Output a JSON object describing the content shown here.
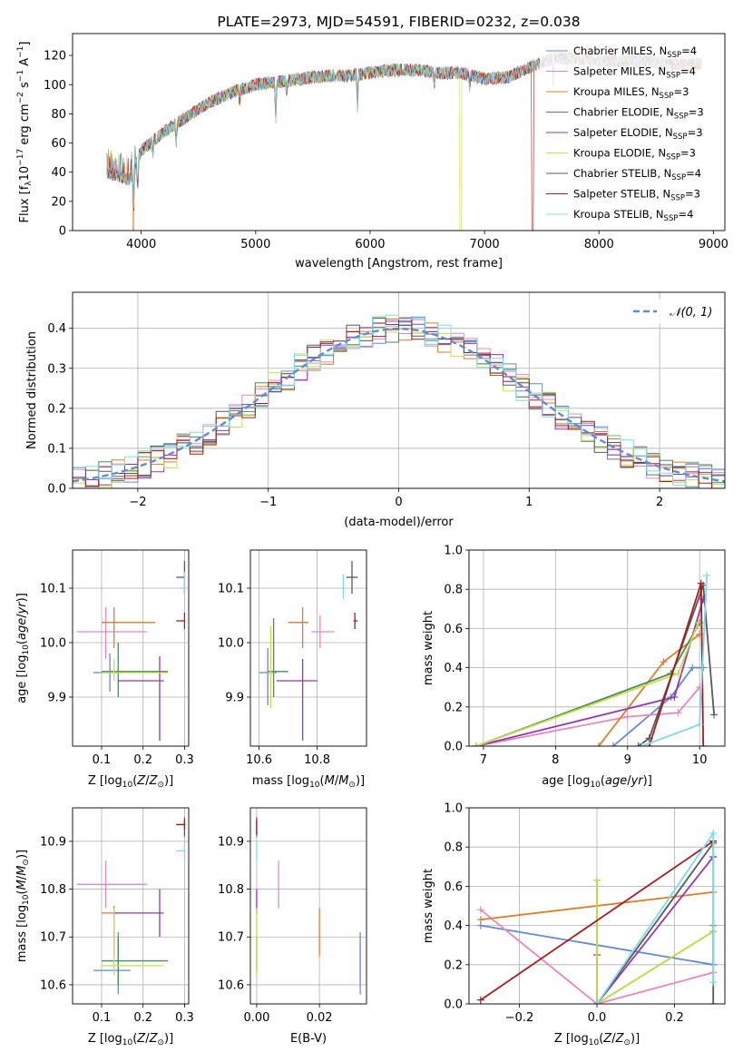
{
  "colors": {
    "chabrier_miles": "#5f8ad8",
    "salpeter_miles": "#e688c0",
    "kroupa_miles": "#e07b28",
    "chabrier_elodie": "#4a8a5c",
    "salpeter_elodie": "#9436b3",
    "kroupa_elodie": "#c5e04a",
    "chabrier_stelib": "#595959",
    "salpeter_stelib": "#a61c1c",
    "kroupa_stelib": "#7fdce8",
    "normal_dashed": "#5f8ad8",
    "grid": "#b0b0b0"
  },
  "chart_data": [
    {
      "id": "spectrum",
      "type": "line",
      "title": "PLATE=2973, MJD=54591, FIBERID=0232, z=0.038",
      "xlabel": "wavelength [Angstrom, rest frame]",
      "ylabel": "Flux [f_λ10^-17 erg cm^-2 s^-1 A^-1]",
      "xlim": [
        3400,
        9100
      ],
      "ylim": [
        0,
        135
      ],
      "xticks": [
        "4000",
        "5000",
        "6000",
        "7000",
        "8000",
        "9000"
      ],
      "yticks": [
        "0",
        "20",
        "40",
        "60",
        "80",
        "100",
        "120"
      ],
      "grid": false,
      "legend_position": "right",
      "legend": [
        {
          "label": "Chabrier MILES, N",
          "sub": "SSP",
          "tail": "=4"
        },
        {
          "label": "Salpeter MILES, N",
          "sub": "SSP",
          "tail": "=4"
        },
        {
          "label": "Kroupa MILES, N",
          "sub": "SSP",
          "tail": "=3"
        },
        {
          "label": "Chabrier ELODIE, N",
          "sub": "SSP",
          "tail": "=3"
        },
        {
          "label": "Salpeter ELODIE, N",
          "sub": "SSP",
          "tail": "=3"
        },
        {
          "label": "Kroupa ELODIE, N",
          "sub": "SSP",
          "tail": "=3"
        },
        {
          "label": "Chabrier STELIB, N",
          "sub": "SSP",
          "tail": "=4"
        },
        {
          "label": "Salpeter STELIB, N",
          "sub": "SSP",
          "tail": "=3"
        },
        {
          "label": "Kroupa STELIB, N",
          "sub": "SSP",
          "tail": "=4"
        }
      ],
      "continuum": {
        "x": [
          3700,
          3900,
          4000,
          4200,
          4400,
          4600,
          4800,
          5000,
          5200,
          5400,
          5600,
          5800,
          6000,
          6200,
          6400,
          6600,
          6800,
          7000,
          7200,
          7400,
          7600,
          7800,
          8000,
          8200,
          8400,
          8600,
          8800,
          8900
        ],
        "y": [
          40,
          35,
          55,
          68,
          78,
          88,
          95,
          100,
          102,
          104,
          106,
          106,
          108,
          110,
          110,
          108,
          108,
          104,
          105,
          112,
          118,
          118,
          116,
          116,
          116,
          114,
          114,
          114
        ]
      },
      "cutoffs": [
        {
          "series": "kroupa_miles",
          "x": 3930
        },
        {
          "series": "kroupa_elodie",
          "x": 6790
        },
        {
          "series": "salpeter_stelib",
          "x": 7420
        }
      ]
    },
    {
      "id": "residuals",
      "type": "histogram",
      "xlabel": "(data-model)/error",
      "ylabel": "Normed distribution",
      "xlim": [
        -2.5,
        2.5
      ],
      "ylim": [
        0,
        0.49
      ],
      "xticks": [
        "−2",
        "−1",
        "0",
        "1",
        "2"
      ],
      "yticks": [
        "0.0",
        "0.1",
        "0.2",
        "0.3",
        "0.4"
      ],
      "grid": true,
      "legend": "𝒩(0, 1)",
      "legend_position": "top-right",
      "bin_width": 0.1,
      "normal_curve": {
        "mean": 0,
        "sigma": 1
      }
    },
    {
      "id": "age_vs_Z",
      "type": "scatter",
      "xlabel": "Z [log10(Z/Z⊙)]",
      "ylabel": "age [log10(age/yr)]",
      "xlim": [
        0.03,
        0.31
      ],
      "ylim": [
        9.81,
        10.17
      ],
      "xticks": [
        "0.1",
        "0.2",
        "0.3"
      ],
      "yticks": [
        "9.9",
        "10.0",
        "10.1"
      ],
      "grid": true,
      "points": [
        {
          "series": "chabrier_miles",
          "x": 0.12,
          "y": 9.945,
          "xerr": [
            0.08,
            0.15
          ],
          "yerr": [
            9.91,
            9.98
          ]
        },
        {
          "series": "salpeter_miles",
          "x": 0.11,
          "y": 10.02,
          "xerr": [
            0.04,
            0.21
          ],
          "yerr": [
            9.97,
            10.065
          ]
        },
        {
          "series": "kroupa_miles",
          "x": 0.13,
          "y": 10.037,
          "xerr": [
            0.1,
            0.23
          ],
          "yerr": [
            9.99,
            10.065
          ]
        },
        {
          "series": "chabrier_elodie",
          "x": 0.14,
          "y": 9.947,
          "xerr": [
            0.1,
            0.26
          ],
          "yerr": [
            9.9,
            10.0
          ]
        },
        {
          "series": "salpeter_elodie",
          "x": 0.24,
          "y": 9.93,
          "xerr": [
            0.14,
            0.25
          ],
          "yerr": [
            9.82,
            9.975
          ]
        },
        {
          "series": "kroupa_elodie",
          "x": 0.13,
          "y": 9.945,
          "xerr": [
            0.1,
            0.26
          ],
          "yerr": [
            9.93,
            9.97
          ]
        },
        {
          "series": "chabrier_stelib",
          "x": 0.3,
          "y": 10.12,
          "xerr": [
            0.28,
            0.3
          ],
          "yerr": [
            10.09,
            10.15
          ]
        },
        {
          "series": "salpeter_stelib",
          "x": 0.3,
          "y": 10.04,
          "xerr": [
            0.28,
            0.3
          ],
          "yerr": [
            10.025,
            10.055
          ]
        },
        {
          "series": "kroupa_stelib",
          "x": 0.3,
          "y": 10.1,
          "xerr": [
            0.29,
            0.3
          ],
          "yerr": [
            10.085,
            10.13
          ]
        }
      ]
    },
    {
      "id": "age_vs_mass",
      "type": "scatter",
      "xlabel": "mass [log10(M/M⊙)]",
      "ylabel": "",
      "xlim": [
        10.57,
        10.97
      ],
      "ylim": [
        9.81,
        10.17
      ],
      "xticks": [
        "10.6",
        "10.8"
      ],
      "yticks": [
        "9.9",
        "10.0",
        "10.1"
      ],
      "grid": true,
      "points": [
        {
          "series": "chabrier_miles",
          "x": 10.63,
          "y": 9.945,
          "xerr": [
            10.6,
            10.66
          ],
          "yerr": [
            9.885,
            9.99
          ]
        },
        {
          "series": "salpeter_miles",
          "x": 10.81,
          "y": 10.02,
          "xerr": [
            10.78,
            10.86
          ],
          "yerr": [
            9.99,
            10.05
          ]
        },
        {
          "series": "kroupa_miles",
          "x": 10.75,
          "y": 10.037,
          "xerr": [
            10.7,
            10.77
          ],
          "yerr": [
            9.99,
            10.065
          ]
        },
        {
          "series": "chabrier_elodie",
          "x": 10.65,
          "y": 9.947,
          "xerr": [
            10.63,
            10.7
          ],
          "yerr": [
            9.9,
            10.045
          ]
        },
        {
          "series": "salpeter_elodie",
          "x": 10.75,
          "y": 9.93,
          "xerr": [
            10.66,
            10.8
          ],
          "yerr": [
            9.82,
            9.97
          ]
        },
        {
          "series": "kroupa_elodie",
          "x": 10.64,
          "y": 9.945,
          "xerr": [
            10.63,
            10.65
          ],
          "yerr": [
            9.88,
            10.03
          ]
        },
        {
          "series": "chabrier_stelib",
          "x": 10.92,
          "y": 10.12,
          "xerr": [
            10.9,
            10.94
          ],
          "yerr": [
            10.09,
            10.15
          ]
        },
        {
          "series": "salpeter_stelib",
          "x": 10.93,
          "y": 10.04,
          "xerr": [
            10.925,
            10.94
          ],
          "yerr": [
            10.025,
            10.055
          ]
        },
        {
          "series": "kroupa_stelib",
          "x": 10.89,
          "y": 10.1,
          "xerr": [
            10.885,
            10.895
          ],
          "yerr": [
            10.08,
            10.125
          ]
        }
      ]
    },
    {
      "id": "weight_vs_age",
      "type": "line",
      "xlabel": "age [log10(age/yr)]",
      "ylabel": "mass weight",
      "xlim": [
        6.8,
        10.35
      ],
      "ylim": [
        0,
        1.0
      ],
      "xticks": [
        "7",
        "8",
        "9",
        "10"
      ],
      "yticks": [
        "0.0",
        "0.2",
        "0.4",
        "0.6",
        "0.8",
        "1.0"
      ],
      "grid": true,
      "series": [
        {
          "series": "chabrier_miles",
          "x": [
            8.8,
            9.6,
            9.9,
            10.05
          ],
          "y": [
            0.0,
            0.25,
            0.4,
            0.4
          ]
        },
        {
          "series": "salpeter_miles",
          "x": [
            6.9,
            9.0,
            9.7,
            10.0
          ],
          "y": [
            0.0,
            0.15,
            0.17,
            0.3
          ]
        },
        {
          "series": "kroupa_miles",
          "x": [
            8.6,
            9.5,
            10.0
          ],
          "y": [
            0.0,
            0.43,
            0.57
          ]
        },
        {
          "series": "chabrier_elodie",
          "x": [
            6.9,
            9.6,
            10.0
          ],
          "y": [
            0.0,
            0.37,
            0.63
          ]
        },
        {
          "series": "salpeter_elodie",
          "x": [
            6.9,
            9.65,
            10.05
          ],
          "y": [
            0.0,
            0.25,
            0.75
          ]
        },
        {
          "series": "kroupa_elodie",
          "x": [
            6.9,
            9.7,
            9.98
          ],
          "y": [
            0.0,
            0.37,
            0.63
          ]
        },
        {
          "series": "chabrier_stelib",
          "x": [
            9.15,
            9.3,
            10.05,
            10.2
          ],
          "y": [
            0.0,
            0.04,
            0.82,
            0.16
          ]
        },
        {
          "series": "salpeter_stelib",
          "x": [
            9.3,
            10.02,
            10.05
          ],
          "y": [
            0.0,
            0.83,
            0.0
          ]
        },
        {
          "series": "kroupa_stelib",
          "x": [
            9.2,
            10.0,
            10.1
          ],
          "y": [
            0.0,
            0.11,
            0.87
          ]
        }
      ]
    },
    {
      "id": "mass_vs_Z",
      "type": "scatter",
      "xlabel": "Z [log10(Z/Z⊙)]",
      "ylabel": "mass [log10(M/M⊙)]",
      "xlim": [
        0.03,
        0.31
      ],
      "ylim": [
        10.56,
        10.97
      ],
      "xticks": [
        "0.1",
        "0.2",
        "0.3"
      ],
      "yticks": [
        "10.6",
        "10.7",
        "10.8",
        "10.9"
      ],
      "grid": true,
      "points": [
        {
          "series": "chabrier_miles",
          "x": 0.14,
          "y": 10.63,
          "xerr": [
            0.08,
            0.17
          ],
          "yerr": [
            10.58,
            10.71
          ]
        },
        {
          "series": "salpeter_miles",
          "x": 0.11,
          "y": 10.81,
          "xerr": [
            0.04,
            0.21
          ],
          "yerr": [
            10.76,
            10.86
          ]
        },
        {
          "series": "kroupa_miles",
          "x": 0.13,
          "y": 10.75,
          "xerr": [
            0.1,
            0.14
          ],
          "yerr": [
            10.66,
            10.765
          ]
        },
        {
          "series": "chabrier_elodie",
          "x": 0.14,
          "y": 10.65,
          "xerr": [
            0.1,
            0.26
          ],
          "yerr": [
            10.6,
            10.7
          ]
        },
        {
          "series": "salpeter_elodie",
          "x": 0.24,
          "y": 10.75,
          "xerr": [
            0.13,
            0.25
          ],
          "yerr": [
            10.7,
            10.8
          ]
        },
        {
          "series": "kroupa_elodie",
          "x": 0.13,
          "y": 10.64,
          "xerr": [
            0.1,
            0.25
          ],
          "yerr": [
            10.62,
            10.76
          ]
        },
        {
          "series": "chabrier_stelib",
          "x": 0.3,
          "y": 10.935,
          "xerr": [
            0.28,
            0.3
          ],
          "yerr": [
            10.91,
            10.95
          ]
        },
        {
          "series": "salpeter_stelib",
          "x": 0.3,
          "y": 10.935,
          "xerr": [
            0.28,
            0.3
          ],
          "yerr": [
            10.925,
            10.945
          ]
        },
        {
          "series": "kroupa_stelib",
          "x": 0.3,
          "y": 10.88,
          "xerr": [
            0.28,
            0.3
          ],
          "yerr": [
            10.86,
            10.9
          ]
        }
      ]
    },
    {
      "id": "mass_vs_ebv",
      "type": "scatter",
      "xlabel": "E(B-V)",
      "ylabel": "",
      "xlim": [
        -0.002,
        0.035
      ],
      "ylim": [
        10.56,
        10.97
      ],
      "xticks": [
        "0.00",
        "0.02"
      ],
      "yticks": [
        "10.6",
        "10.7",
        "10.8",
        "10.9"
      ],
      "grid": true,
      "points": [
        {
          "series": "chabrier_miles",
          "x": 0.033,
          "y": 10.64,
          "yerr": [
            10.58,
            10.71
          ]
        },
        {
          "series": "salpeter_miles",
          "x": 0.007,
          "y": 10.81,
          "yerr": [
            10.76,
            10.86
          ]
        },
        {
          "series": "kroupa_miles",
          "x": 0.02,
          "y": 10.71,
          "yerr": [
            10.66,
            10.76
          ]
        },
        {
          "series": "chabrier_elodie",
          "x": 0.0,
          "y": 10.65,
          "yerr": [
            10.63,
            10.7
          ]
        },
        {
          "series": "salpeter_elodie",
          "x": 0.0,
          "y": 10.78,
          "yerr": [
            10.75,
            10.8
          ]
        },
        {
          "series": "kroupa_elodie",
          "x": 0.0,
          "y": 10.69,
          "yerr": [
            10.62,
            10.76
          ]
        },
        {
          "series": "chabrier_stelib",
          "x": 0.0,
          "y": 10.93,
          "yerr": [
            10.91,
            10.95
          ]
        },
        {
          "series": "salpeter_stelib",
          "x": 0.0,
          "y": 10.93,
          "yerr": [
            10.915,
            10.945
          ]
        },
        {
          "series": "kroupa_stelib",
          "x": 0.0,
          "y": 10.88,
          "yerr": [
            10.86,
            10.9
          ]
        }
      ]
    },
    {
      "id": "weight_vs_Z",
      "type": "line",
      "xlabel": "Z [log10(Z/Z⊙)]",
      "ylabel": "mass weight",
      "xlim": [
        -0.33,
        0.33
      ],
      "ylim": [
        0,
        1.0
      ],
      "xticks": [
        "−0.2",
        "0.0",
        "0.2"
      ],
      "yticks": [
        "0.0",
        "0.2",
        "0.4",
        "0.6",
        "0.8",
        "1.0"
      ],
      "grid": true,
      "series": [
        {
          "series": "chabrier_miles",
          "x": [
            -0.3,
            0.3,
            0.3
          ],
          "y": [
            0.4,
            0.2,
            0.4
          ]
        },
        {
          "series": "salpeter_miles",
          "x": [
            -0.3,
            0.0,
            0.3,
            0.3
          ],
          "y": [
            0.48,
            0.0,
            0.16,
            0.16
          ]
        },
        {
          "series": "kroupa_miles",
          "x": [
            -0.3,
            0.3
          ],
          "y": [
            0.43,
            0.57
          ]
        },
        {
          "series": "chabrier_elodie",
          "x": [
            0.0,
            0.0,
            0.3,
            0.3
          ],
          "y": [
            0.63,
            0.0,
            0.37,
            0.37
          ]
        },
        {
          "series": "salpeter_elodie",
          "x": [
            0.0,
            0.0,
            0.3,
            0.3
          ],
          "y": [
            0.25,
            0.0,
            0.75,
            0.75
          ]
        },
        {
          "series": "kroupa_elodie",
          "x": [
            0.0,
            0.0,
            0.3,
            0.3
          ],
          "y": [
            0.63,
            0.0,
            0.37,
            0.37
          ]
        },
        {
          "series": "chabrier_stelib",
          "x": [
            0.0,
            0.3,
            0.3
          ],
          "y": [
            0.0,
            0.82,
            0.0
          ]
        },
        {
          "series": "salpeter_stelib",
          "x": [
            -0.3,
            0.3,
            0.3
          ],
          "y": [
            0.02,
            0.83,
            0.83
          ]
        },
        {
          "series": "kroupa_stelib",
          "x": [
            0.0,
            0.3,
            0.3
          ],
          "y": [
            0.0,
            0.87,
            0.11
          ]
        }
      ]
    }
  ]
}
